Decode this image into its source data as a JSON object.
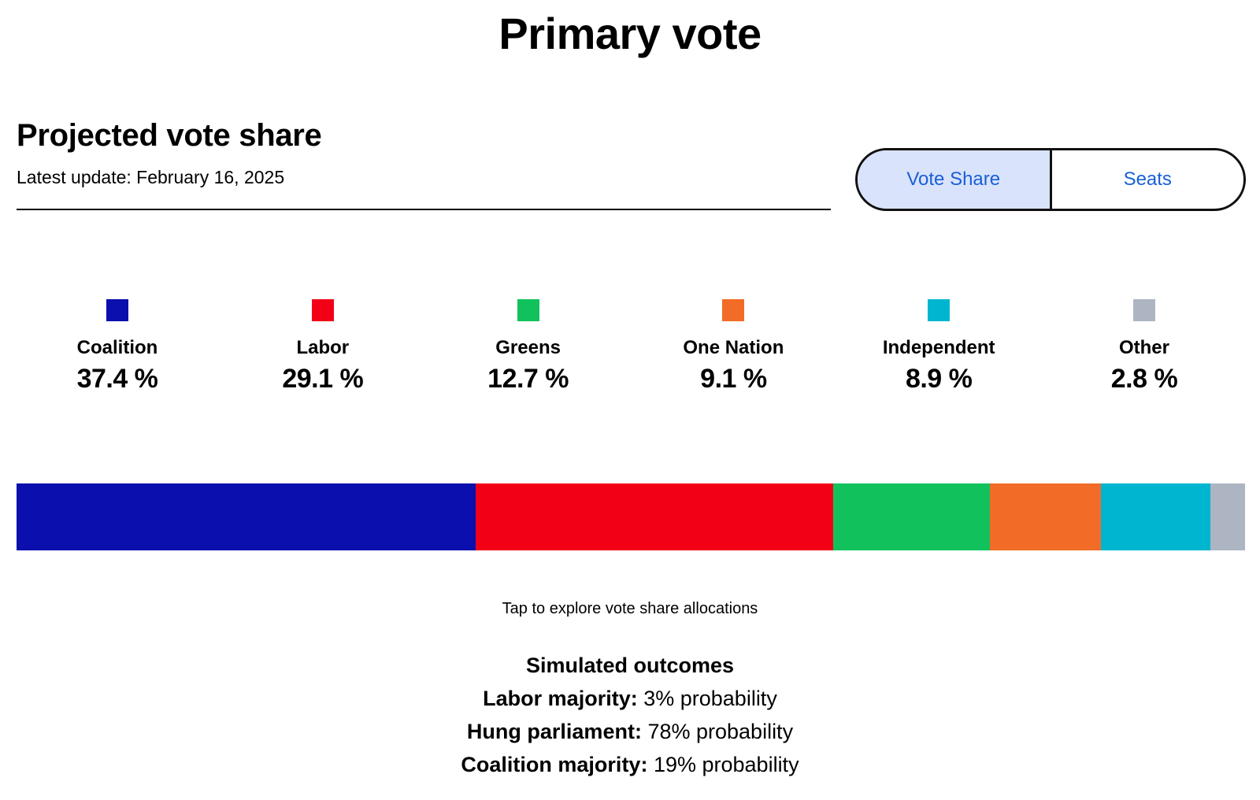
{
  "page_title": "Primary vote",
  "section": {
    "title": "Projected vote share",
    "update": "Latest update: February 16, 2025"
  },
  "toggle": {
    "options": [
      "Vote Share",
      "Seats"
    ],
    "active": "Vote Share"
  },
  "chart_data": {
    "type": "bar",
    "orientation": "horizontal-stacked",
    "unit": "%",
    "series": [
      {
        "name": "Coalition",
        "value": 37.4,
        "label": "37.4 %",
        "color": "#0a0fad"
      },
      {
        "name": "Labor",
        "value": 29.1,
        "label": "29.1 %",
        "color": "#f20016"
      },
      {
        "name": "Greens",
        "value": 12.7,
        "label": "12.7 %",
        "color": "#11c25c"
      },
      {
        "name": "One Nation",
        "value": 9.1,
        "label": "9.1 %",
        "color": "#f26c27"
      },
      {
        "name": "Independent",
        "value": 8.9,
        "label": "8.9 %",
        "color": "#00b5cf"
      },
      {
        "name": "Other",
        "value": 2.8,
        "label": "2.8 %",
        "color": "#adb5c2"
      }
    ],
    "legend_position": "top"
  },
  "hint": "Tap to explore vote share allocations",
  "outcomes": {
    "title": "Simulated outcomes",
    "rows": [
      {
        "label": "Labor majority:",
        "value": "3% probability"
      },
      {
        "label": "Hung parliament:",
        "value": "78% probability"
      },
      {
        "label": "Coalition majority:",
        "value": "19% probability"
      }
    ]
  }
}
